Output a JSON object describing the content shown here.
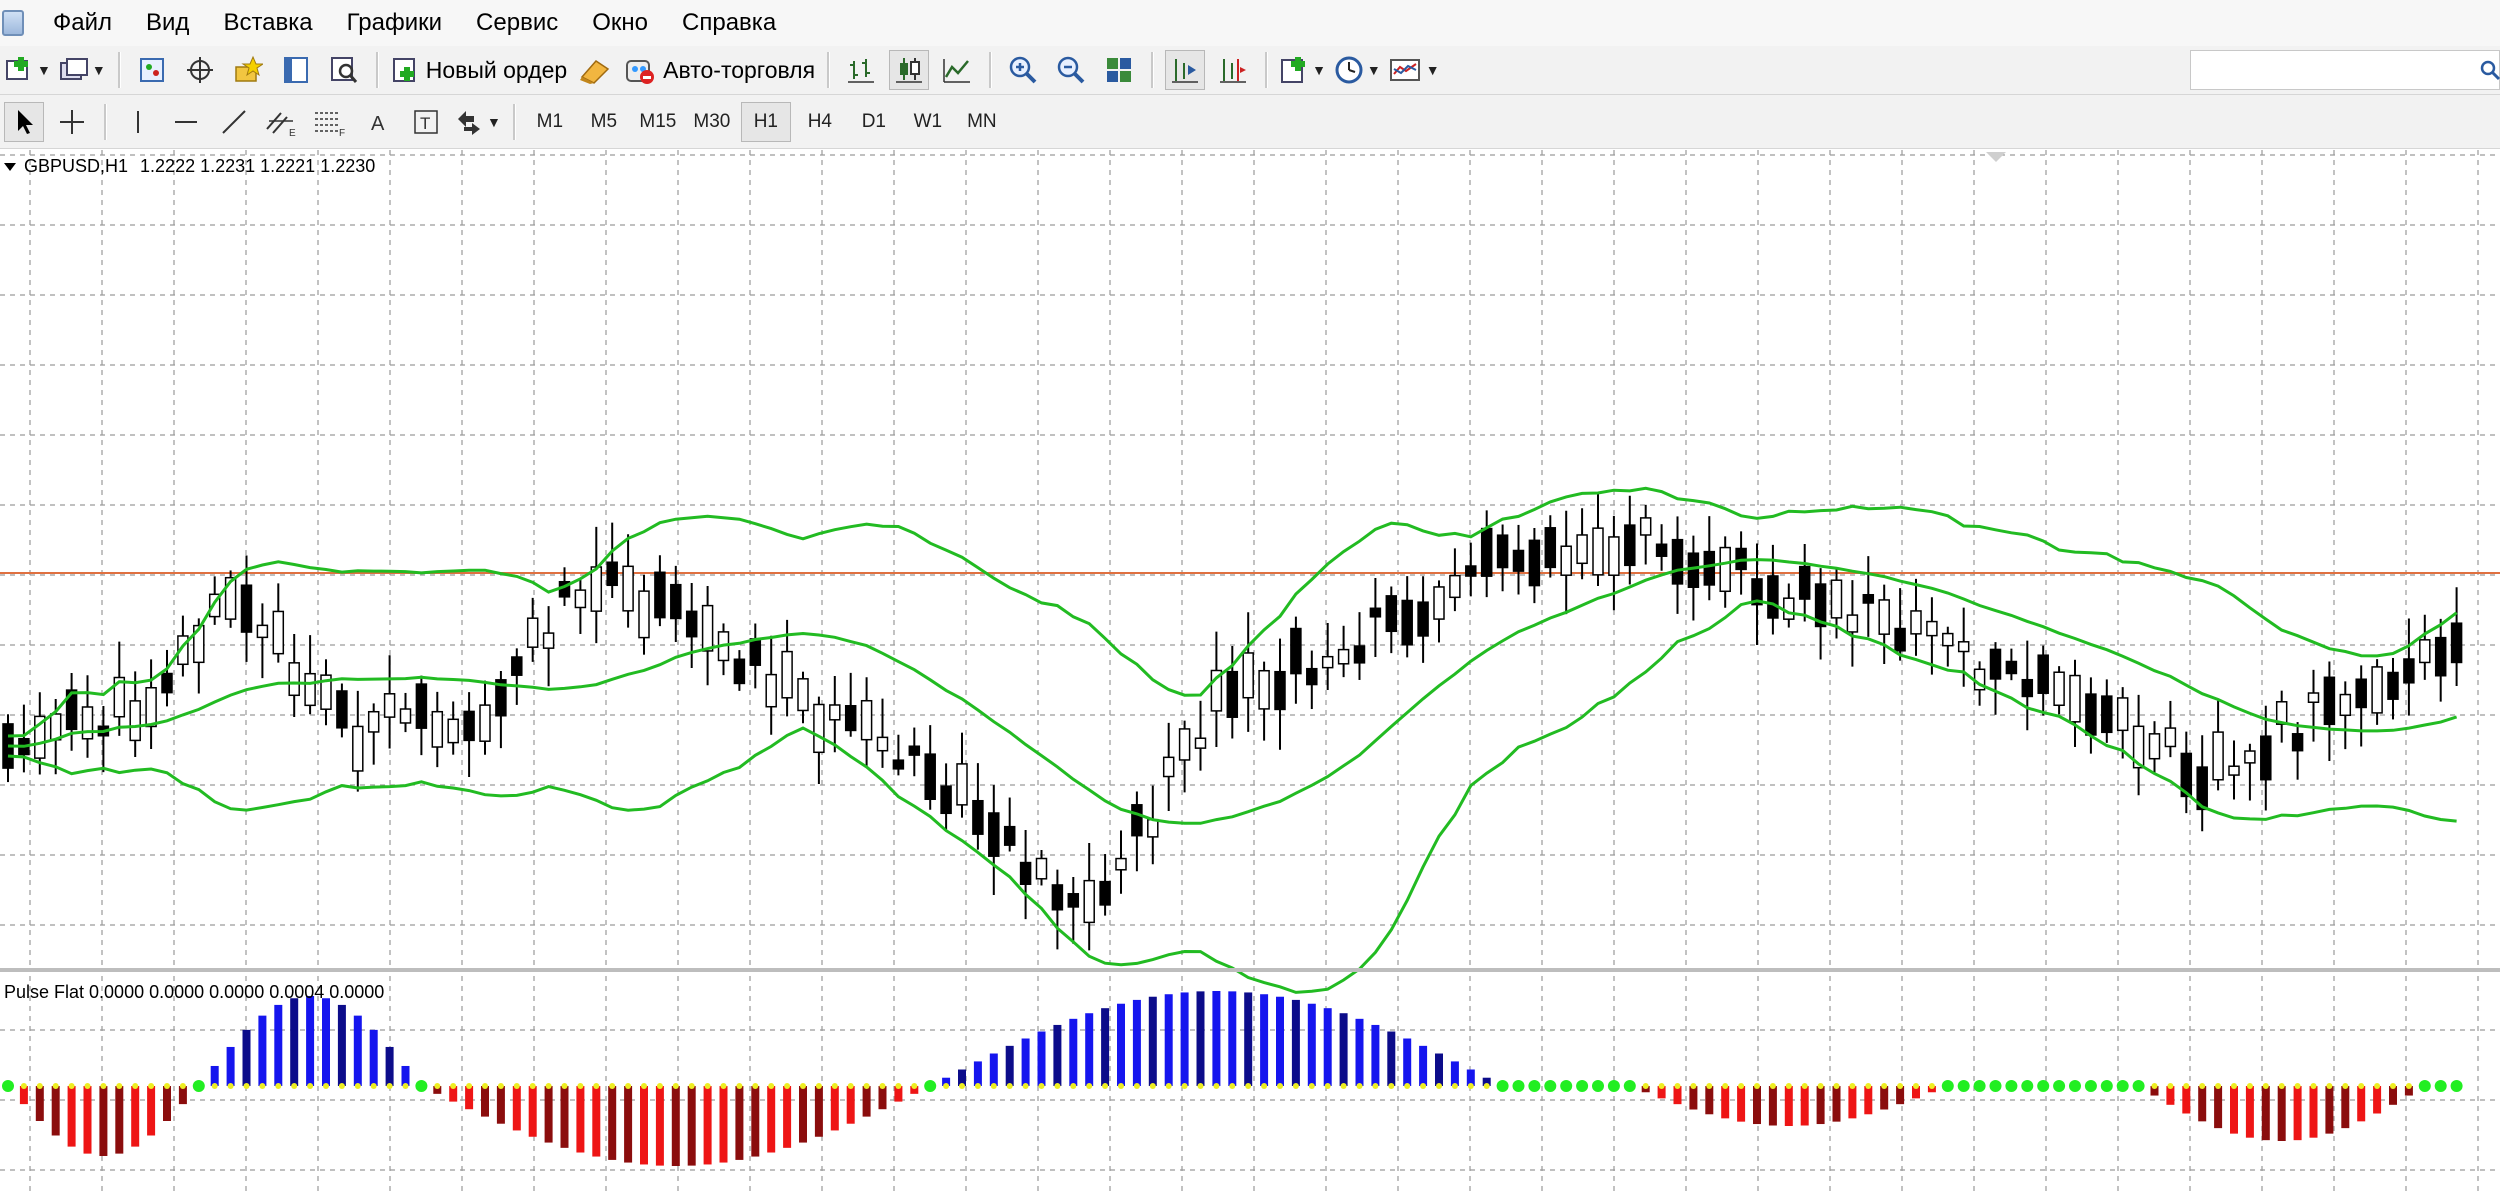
{
  "menu": [
    "Файл",
    "Вид",
    "Вставка",
    "Графики",
    "Сервис",
    "Окно",
    "Справка"
  ],
  "toolbar": {
    "new_order_label": "Новый ордер",
    "autotrading_label": "Авто-торговля"
  },
  "timeframes": [
    "M1",
    "M5",
    "M15",
    "M30",
    "H1",
    "H4",
    "D1",
    "W1",
    "MN"
  ],
  "active_timeframe": "H1",
  "chart": {
    "symbol_label": "GBPUSD,H1",
    "ohlc_label": "1.2222 1.2231 1.2221 1.2230",
    "indicator_label": "Pulse Flat 0.0000 0.0000 0.0000 0.0004 0.0000",
    "colors": {
      "bull_body": "#ffffff",
      "bear_body": "#000000",
      "bands": "#22bb22",
      "price_line": "#e07040",
      "grid": "#9a9a9a",
      "osc_blue": "#1515ee",
      "osc_navy": "#0c0c8a",
      "osc_red": "#ee1515",
      "osc_dark_red": "#8b0d0d",
      "osc_dot_green": "#22ee22",
      "osc_dot_yellow": "#eeee22"
    }
  }
}
